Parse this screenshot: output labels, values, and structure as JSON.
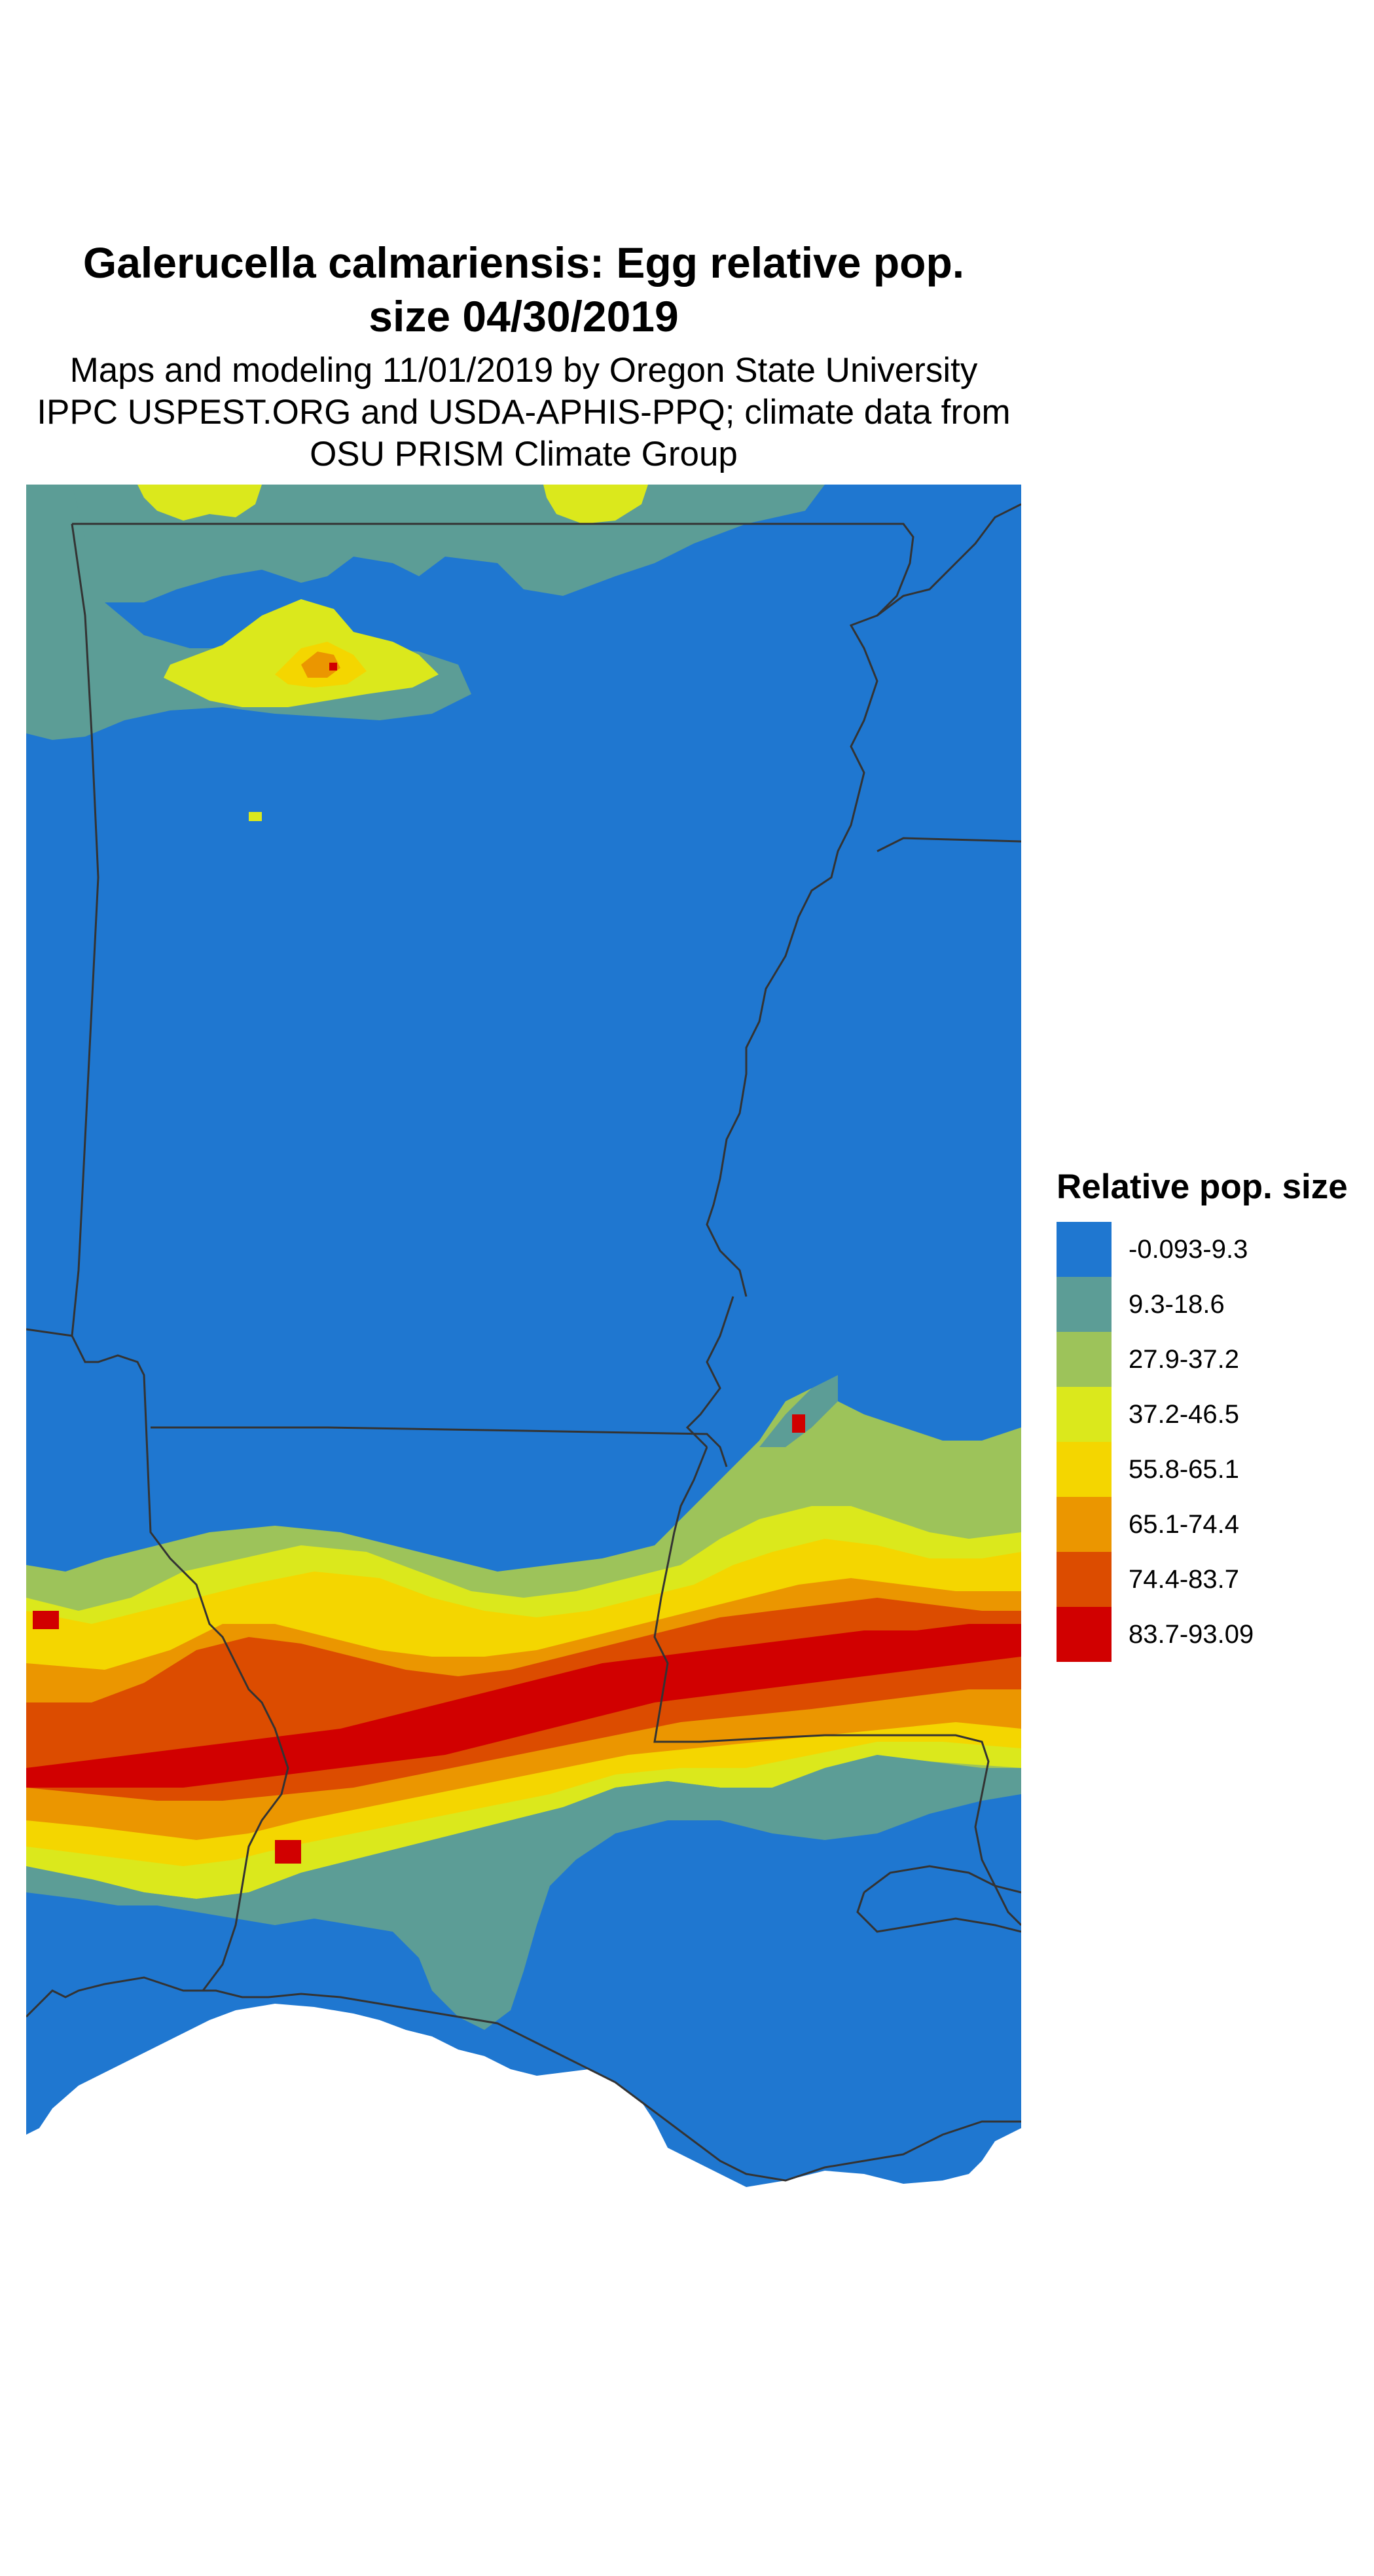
{
  "title_line1": "Galerucella calmariensis: Egg relative pop.",
  "title_line2": "size 04/30/2019",
  "subtitle_line1": "Maps and modeling 11/01/2019 by Oregon State University",
  "subtitle_line2": "IPPC USPEST.ORG and USDA-APHIS-PPQ; climate data from",
  "subtitle_line3": "OSU PRISM Climate Group",
  "legend": {
    "title": "Relative pop. size",
    "items": [
      {
        "label": "-0.093-9.3",
        "color": "#1f77d0"
      },
      {
        "label": "9.3-18.6",
        "color": "#5c9d96"
      },
      {
        "label": "27.9-37.2",
        "color": "#9dc35a"
      },
      {
        "label": "37.2-46.5",
        "color": "#dbe81c"
      },
      {
        "label": "55.8-65.1",
        "color": "#f4d600"
      },
      {
        "label": "65.1-74.4",
        "color": "#eb9600"
      },
      {
        "label": "74.4-83.7",
        "color": "#dc4c00"
      },
      {
        "label": "83.7-93.09",
        "color": "#d10000"
      }
    ]
  },
  "map": {
    "region": "Arkansas, Louisiana, Mississippi (southern US)",
    "background_class": "-0.093-9.3",
    "hotspot_classes": [
      "9.3-18.6",
      "27.9-37.2",
      "37.2-46.5",
      "55.8-65.1",
      "65.1-74.4",
      "74.4-83.7",
      "83.7-93.09"
    ]
  }
}
